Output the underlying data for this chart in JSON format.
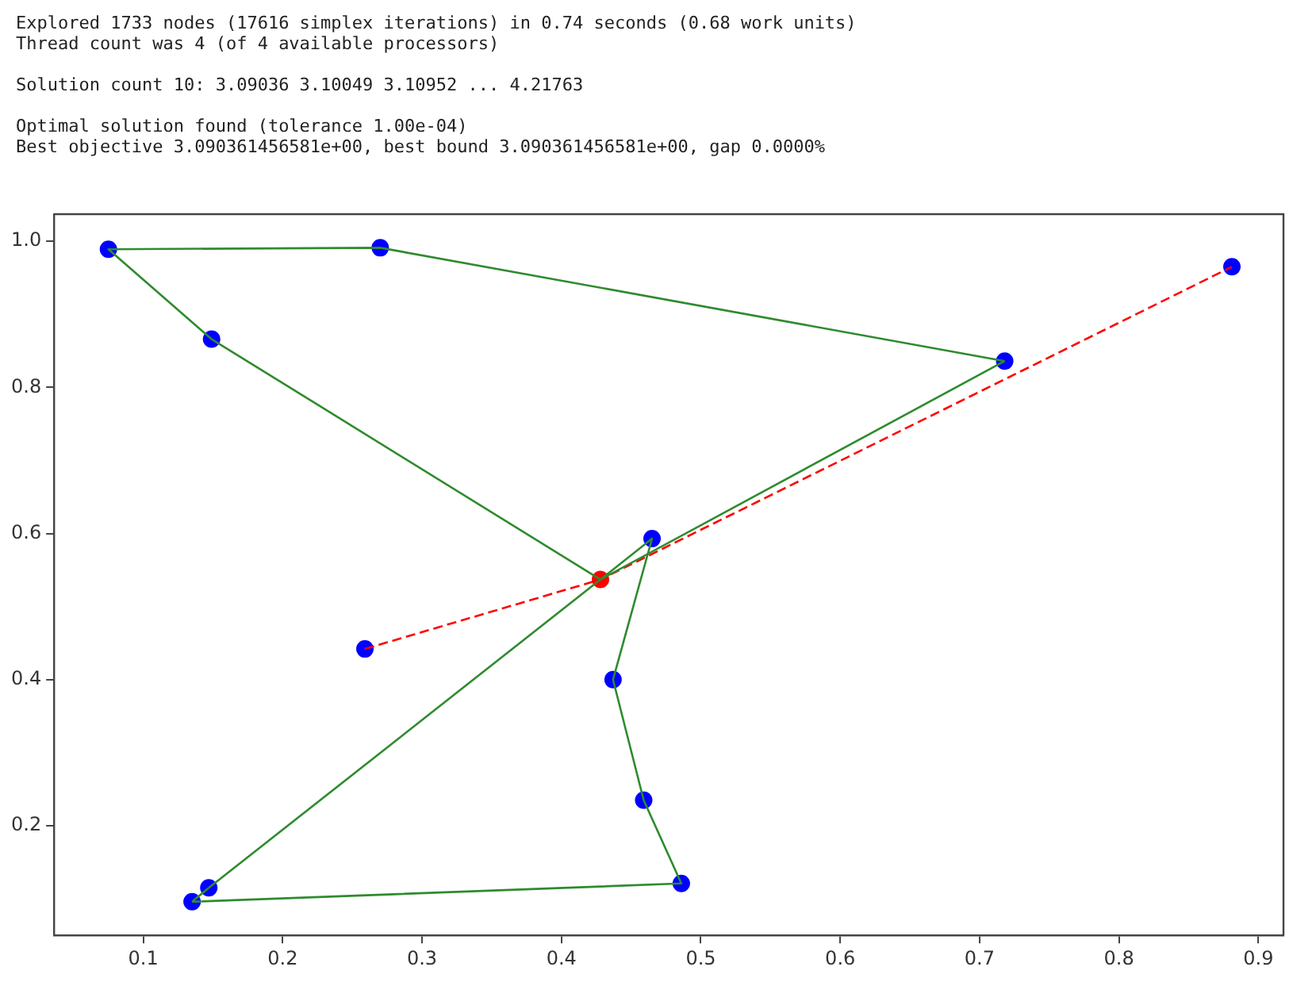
{
  "chart_data": {
    "type": "scatter",
    "annotations": [
      "Explored 1733 nodes (17616 simplex iterations) in 0.74 seconds (0.68 work units)\nThread count was 4 (of 4 available processors)",
      "Solution count 10: 3.09036 3.10049 3.10952 ... 4.21763",
      "Optimal solution found (tolerance 1.00e-04)\nBest objective 3.090361456581e+00, best bound 3.090361456581e+00, gap 0.0000%"
    ],
    "xlim": [
      0.036,
      0.918
    ],
    "ylim": [
      0.05,
      1.037
    ],
    "xticks": [
      0.1,
      0.2,
      0.3,
      0.4,
      0.5,
      0.6,
      0.7,
      0.8,
      0.9
    ],
    "yticks": [
      0.2,
      0.4,
      0.6,
      0.8,
      {
        "value": 1.0,
        "label": "1.0"
      }
    ],
    "grid": false,
    "legend": false,
    "series": [
      {
        "type": "line",
        "color": "#2e8b2e",
        "line_style": "solid",
        "marker": "none",
        "x": [
          0.428,
          0.149,
          0.075,
          0.27,
          0.718
        ],
        "values": [
          0.537,
          0.866,
          0.989,
          0.991,
          0.836
        ]
      },
      {
        "type": "line",
        "color": "#2e8b2e",
        "line_style": "solid",
        "marker": "none",
        "x": [
          0.718,
          0.428
        ],
        "values": [
          0.836,
          0.537
        ]
      },
      {
        "type": "line",
        "color": "#2e8b2e",
        "line_style": "solid",
        "marker": "none",
        "x": [
          0.147,
          0.428,
          0.465,
          0.437,
          0.459,
          0.486,
          0.135
        ],
        "values": [
          0.115,
          0.537,
          0.593,
          0.4,
          0.235,
          0.121,
          0.096
        ]
      },
      {
        "type": "line",
        "color": "#2e8b2e",
        "line_style": "solid",
        "marker": "none",
        "x": [
          0.135,
          0.147
        ],
        "values": [
          0.096,
          0.115
        ]
      },
      {
        "type": "line",
        "color": "#ff0000",
        "line_style": "dashed",
        "marker": "none",
        "x": [
          0.259,
          0.428,
          0.881
        ],
        "values": [
          0.442,
          0.537,
          0.965
        ]
      },
      {
        "type": "scatter",
        "color": "#0000ff",
        "marker": "circle",
        "x": [
          0.075,
          0.27,
          0.149,
          0.718,
          0.881,
          0.465,
          0.259,
          0.437,
          0.459,
          0.486,
          0.147,
          0.135
        ],
        "values": [
          0.989,
          0.991,
          0.866,
          0.836,
          0.965,
          0.593,
          0.442,
          0.4,
          0.235,
          0.121,
          0.115,
          0.096
        ]
      },
      {
        "type": "scatter",
        "color": "#ff0000",
        "marker": "circle",
        "x": [
          0.428
        ],
        "values": [
          0.537
        ]
      }
    ]
  }
}
